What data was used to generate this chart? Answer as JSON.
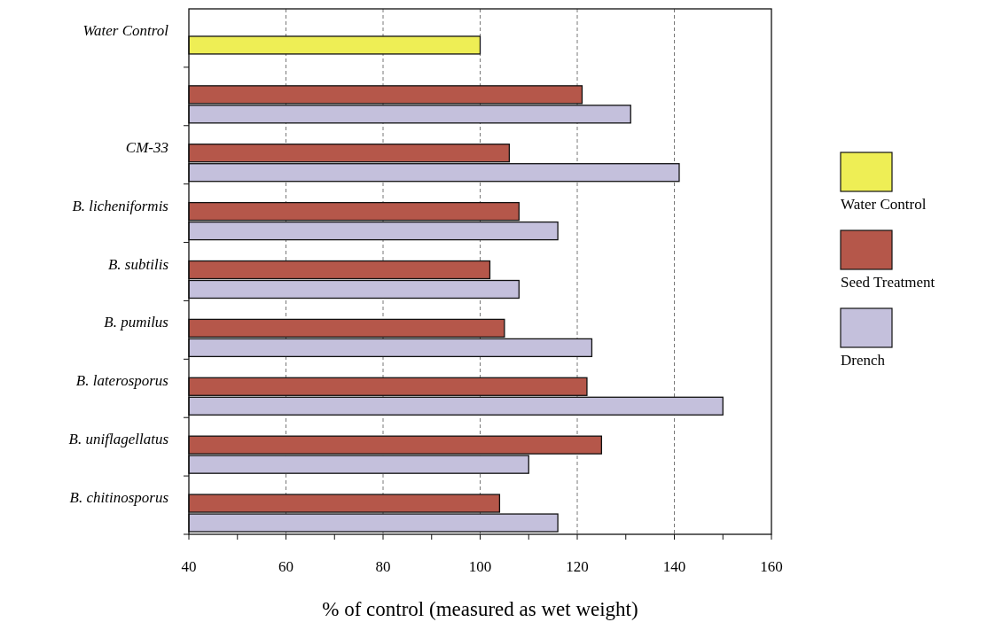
{
  "chart_data": {
    "type": "bar",
    "orientation": "horizontal",
    "xlabel": "% of control (measured as wet weight)",
    "categories": [
      "Water Control",
      null,
      "CM-33",
      "B. licheniformis",
      "B. subtilis",
      "B. pumilus",
      "B. laterosporus",
      "B. uniflagellatus",
      "B. chitinosporus"
    ],
    "series": [
      {
        "name": "Water Control",
        "color": "#eeee55",
        "values": [
          100,
          null,
          null,
          null,
          null,
          null,
          null,
          null,
          null
        ]
      },
      {
        "name": "Seed Treatment",
        "color": "#b5574a",
        "values": [
          null,
          121,
          106,
          108,
          102,
          105,
          122,
          125,
          104
        ]
      },
      {
        "name": "Drench",
        "color": "#c4c0dc",
        "values": [
          null,
          131,
          141,
          116,
          108,
          123,
          150,
          110,
          116
        ]
      }
    ],
    "xlim": [
      40,
      160
    ],
    "xticks": [
      40,
      {
        "value": 50,
        "label": null
      },
      60,
      {
        "value": 70,
        "label": null
      },
      80,
      {
        "value": 90,
        "label": null
      },
      100,
      {
        "value": 110,
        "label": null
      },
      120,
      {
        "value": 130,
        "label": null
      },
      140,
      {
        "value": 150,
        "label": null
      },
      160
    ],
    "grid": "x",
    "legend": "right"
  }
}
